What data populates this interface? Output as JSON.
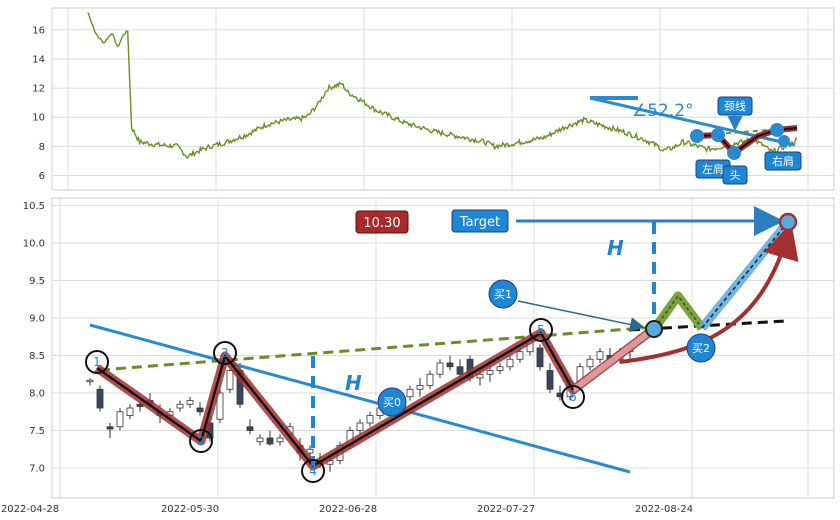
{
  "chart_data": [
    {
      "type": "line",
      "name_hint": "overview",
      "x_range": [
        "2021-01-01",
        "2022-10-15"
      ],
      "ylim": [
        5,
        17.5
      ],
      "yticks": [
        6,
        8,
        10,
        12,
        14,
        16
      ],
      "grid": true,
      "series": [
        {
          "color": "#6b8e23",
          "points": [
            [
              0,
              17.2
            ],
            [
              8,
              15.7
            ],
            [
              16,
              15.1
            ],
            [
              24,
              15.8
            ],
            [
              30,
              14.8
            ],
            [
              36,
              15.7
            ],
            [
              40,
              15.9
            ],
            [
              44,
              9.3
            ],
            [
              52,
              8.3
            ],
            [
              70,
              8.1
            ],
            [
              90,
              8.0
            ],
            [
              100,
              7.3
            ],
            [
              112,
              7.7
            ],
            [
              124,
              8.0
            ],
            [
              140,
              8.3
            ],
            [
              160,
              8.8
            ],
            [
              180,
              9.5
            ],
            [
              200,
              9.8
            ],
            [
              215,
              9.9
            ],
            [
              222,
              10.1
            ],
            [
              232,
              10.9
            ],
            [
              242,
              12.0
            ],
            [
              256,
              12.3
            ],
            [
              262,
              11.7
            ],
            [
              270,
              11.4
            ],
            [
              290,
              10.5
            ],
            [
              320,
              9.6
            ],
            [
              350,
              9.0
            ],
            [
              380,
              8.6
            ],
            [
              400,
              8.3
            ],
            [
              410,
              8.0
            ],
            [
              430,
              8.2
            ],
            [
              460,
              8.6
            ],
            [
              480,
              9.3
            ],
            [
              500,
              9.8
            ],
            [
              520,
              9.4
            ],
            [
              540,
              9.0
            ],
            [
              560,
              8.5
            ],
            [
              575,
              8.0
            ],
            [
              580,
              7.7
            ],
            [
              590,
              7.9
            ],
            [
              600,
              8.3
            ],
            [
              615,
              8.0
            ],
            [
              625,
              7.8
            ],
            [
              635,
              7.9
            ],
            [
              645,
              8.1
            ],
            [
              660,
              8.3
            ],
            [
              670,
              8.5
            ],
            [
              680,
              8.1
            ],
            [
              690,
              7.6
            ],
            [
              700,
              7.9
            ],
            [
              710,
              8.2
            ],
            [
              715,
              8.5
            ]
          ]
        }
      ],
      "annotations": {
        "angle_label": "∠52.2°",
        "pattern_labels": [
          "左肩",
          "头",
          "颈线",
          "右肩"
        ]
      }
    },
    {
      "type": "candlestick",
      "name_hint": "pattern-detail",
      "x_ticks": [
        "2022-04-28",
        "2022-05-30",
        "2022-06-28",
        "2022-07-27",
        "2022-08-24"
      ],
      "ylim": [
        6.6,
        10.6
      ],
      "yticks": [
        7.0,
        7.5,
        8.0,
        8.5,
        9.0,
        9.5,
        10.0,
        10.5
      ],
      "grid": true,
      "candles": [
        [
          8.15,
          8.2,
          8.1,
          8.17
        ],
        [
          8.05,
          8.1,
          7.75,
          7.8
        ],
        [
          7.55,
          7.6,
          7.4,
          7.52
        ],
        [
          7.55,
          7.8,
          7.5,
          7.75
        ],
        [
          7.7,
          7.85,
          7.65,
          7.8
        ],
        [
          7.85,
          7.9,
          7.75,
          7.82
        ],
        [
          7.9,
          8.0,
          7.82,
          7.85
        ],
        [
          7.75,
          7.85,
          7.6,
          7.7
        ],
        [
          7.7,
          7.8,
          7.65,
          7.75
        ],
        [
          7.8,
          7.9,
          7.75,
          7.85
        ],
        [
          7.85,
          7.95,
          7.8,
          7.9
        ],
        [
          7.8,
          7.88,
          7.7,
          7.75
        ],
        [
          7.6,
          7.7,
          7.35,
          7.4
        ],
        [
          7.65,
          8.05,
          7.6,
          8.0
        ],
        [
          8.05,
          8.35,
          8.0,
          8.3
        ],
        [
          8.3,
          8.4,
          7.8,
          7.85
        ],
        [
          7.55,
          7.65,
          7.45,
          7.5
        ],
        [
          7.35,
          7.45,
          7.3,
          7.4
        ],
        [
          7.4,
          7.5,
          7.3,
          7.32
        ],
        [
          7.35,
          7.45,
          7.3,
          7.4
        ],
        [
          7.45,
          7.6,
          7.4,
          7.55
        ],
        [
          7.3,
          7.4,
          7.1,
          7.2
        ],
        [
          7.2,
          7.3,
          7.05,
          7.25
        ],
        [
          7.1,
          7.2,
          7.0,
          7.05
        ],
        [
          7.05,
          7.15,
          6.95,
          7.1
        ],
        [
          7.1,
          7.35,
          7.05,
          7.3
        ],
        [
          7.3,
          7.55,
          7.25,
          7.5
        ],
        [
          7.5,
          7.65,
          7.45,
          7.6
        ],
        [
          7.6,
          7.75,
          7.55,
          7.7
        ],
        [
          7.7,
          7.85,
          7.65,
          7.8
        ],
        [
          7.8,
          7.9,
          7.7,
          7.85
        ],
        [
          7.85,
          8.0,
          7.8,
          7.95
        ],
        [
          7.95,
          8.1,
          7.9,
          8.05
        ],
        [
          8.05,
          8.2,
          7.95,
          8.1
        ],
        [
          8.1,
          8.3,
          8.05,
          8.25
        ],
        [
          8.25,
          8.45,
          8.2,
          8.4
        ],
        [
          8.4,
          8.5,
          8.3,
          8.35
        ],
        [
          8.35,
          8.45,
          8.2,
          8.25
        ],
        [
          8.45,
          8.5,
          8.15,
          8.2
        ],
        [
          8.2,
          8.3,
          8.1,
          8.25
        ],
        [
          8.25,
          8.35,
          8.15,
          8.3
        ],
        [
          8.3,
          8.4,
          8.25,
          8.35
        ],
        [
          8.35,
          8.5,
          8.3,
          8.45
        ],
        [
          8.45,
          8.6,
          8.4,
          8.55
        ],
        [
          8.55,
          8.75,
          8.5,
          8.7
        ],
        [
          8.6,
          8.65,
          8.3,
          8.35
        ],
        [
          8.3,
          8.4,
          8.0,
          8.05
        ],
        [
          8.0,
          8.1,
          7.9,
          7.95
        ],
        [
          7.95,
          8.2,
          7.9,
          8.15
        ],
        [
          8.15,
          8.4,
          8.1,
          8.35
        ],
        [
          8.35,
          8.5,
          8.3,
          8.45
        ],
        [
          8.45,
          8.6,
          8.4,
          8.55
        ],
        [
          8.5,
          8.6,
          8.4,
          8.45
        ],
        [
          8.45,
          8.6,
          8.4,
          8.55
        ],
        [
          8.55,
          8.65,
          8.45,
          8.6
        ]
      ],
      "pivot_points": [
        {
          "label": "1",
          "x": "2022-05-08",
          "y": 8.35
        },
        {
          "label": "2",
          "x": "2022-05-28",
          "y": 7.35
        },
        {
          "label": "3",
          "x": "2022-06-01",
          "y": 8.5
        },
        {
          "label": "4",
          "x": "2022-06-14",
          "y": 6.95
        },
        {
          "label": "5",
          "x": "2022-07-28",
          "y": 8.8
        },
        {
          "label": "6",
          "x": "2022-08-01",
          "y": 7.9
        }
      ],
      "neckline_start": 8.28,
      "breakout_price": 8.8,
      "target_price": 10.3,
      "annotations": {
        "price_badge": "10.30",
        "target_label": "Target",
        "height_label": "H",
        "buy_labels": [
          "买1",
          "买0",
          "买2"
        ]
      }
    }
  ]
}
